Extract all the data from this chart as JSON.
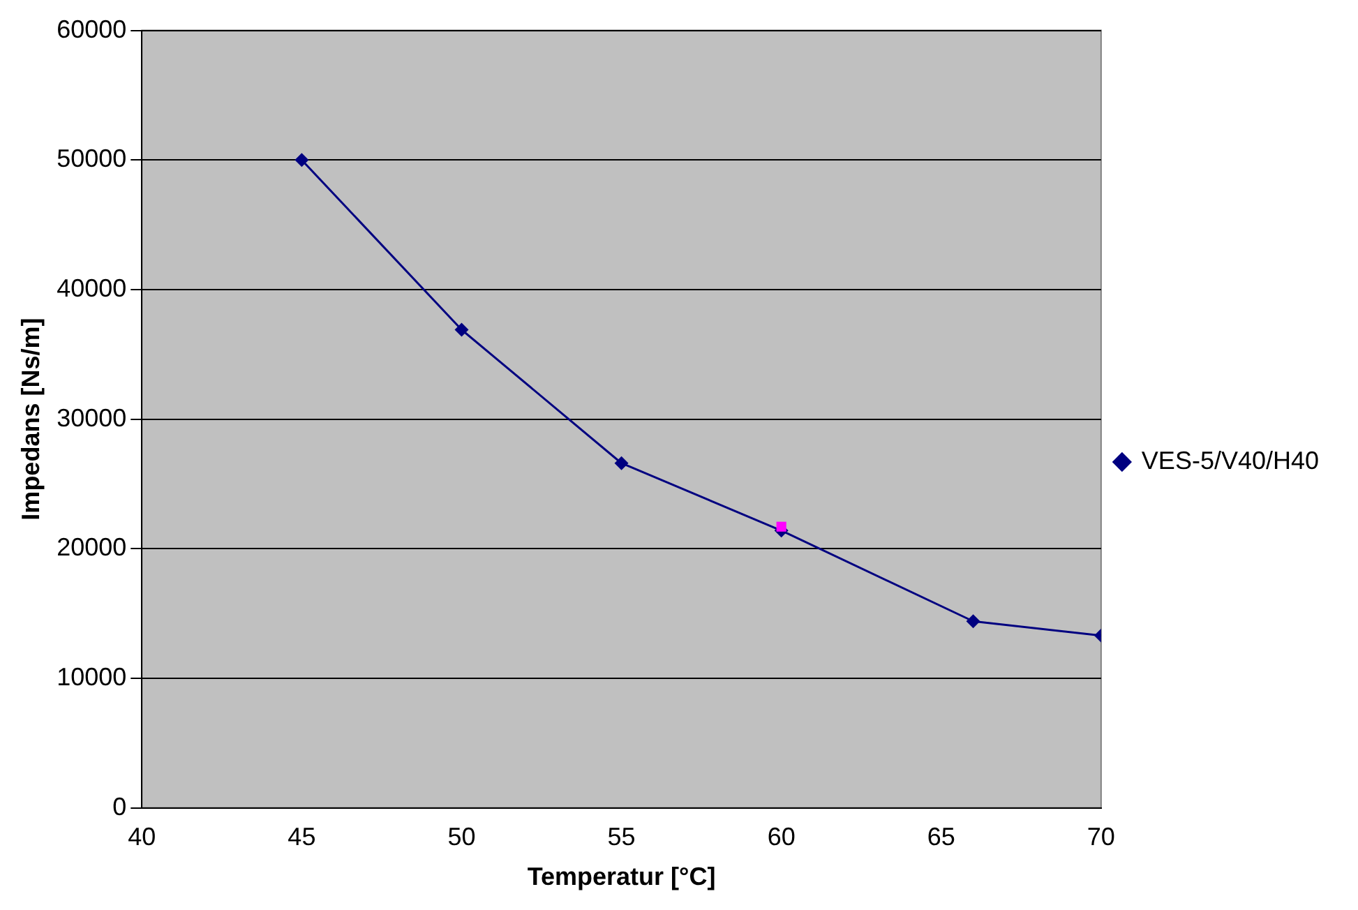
{
  "chart_data": {
    "type": "line",
    "xlabel": "Temperatur [°C]",
    "ylabel": "Impedans [Ns/m]",
    "xlim": [
      40,
      70
    ],
    "xticks": [
      40,
      45,
      50,
      55,
      60,
      65,
      70
    ],
    "ylim": [
      0,
      60000
    ],
    "yticks": [
      0,
      10000,
      20000,
      30000,
      40000,
      50000,
      60000
    ],
    "grid": "y",
    "legend": "right",
    "series": [
      {
        "name": "VES-5/V40/H40",
        "color": "#000080",
        "marker": "diamond",
        "x": [
          45,
          50,
          55,
          60,
          66,
          70
        ],
        "values": [
          50000,
          36900,
          26600,
          21400,
          14400,
          13300
        ]
      },
      {
        "type": "scatter",
        "color": "#ff00ff",
        "marker": "square",
        "x": [
          60
        ],
        "values": [
          21700
        ]
      }
    ]
  }
}
